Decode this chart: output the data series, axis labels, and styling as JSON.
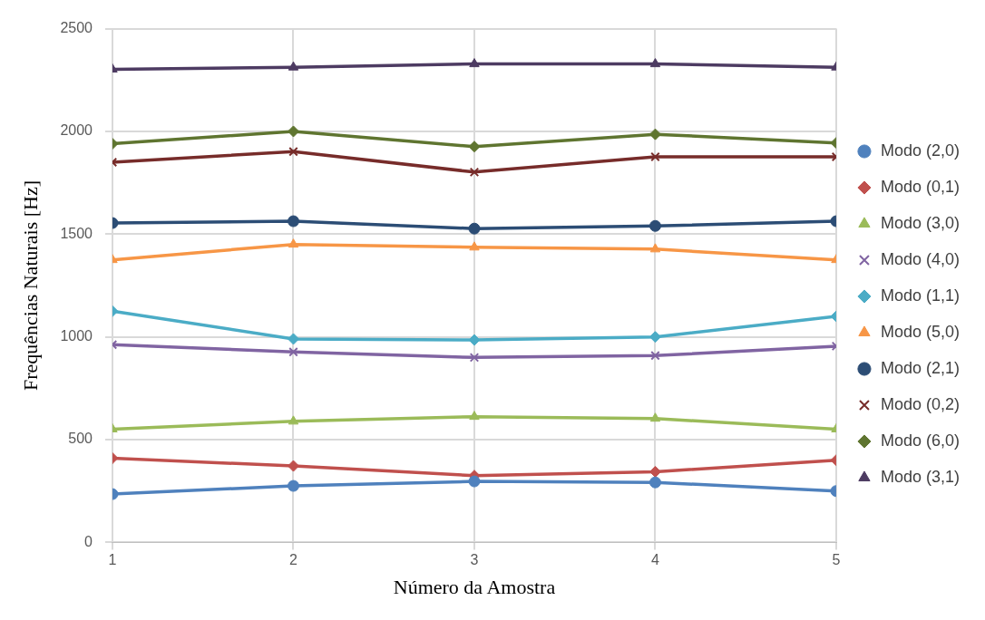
{
  "chart_data": {
    "type": "line",
    "xlabel": "Número da Amostra",
    "ylabel": "Frequências Naturais [Hz]",
    "x": [
      1,
      2,
      3,
      4,
      5
    ],
    "xlim": [
      1,
      5
    ],
    "xticks": [
      1,
      2,
      3,
      4,
      5
    ],
    "ylim": [
      0,
      2500
    ],
    "yticks": [
      0,
      500,
      1000,
      1500,
      2000,
      2500
    ],
    "grid": true,
    "legend": "right",
    "series": [
      {
        "name": "Modo (2,0)",
        "color": "#4f81bd",
        "marker": "circle",
        "values": [
          235,
          275,
          297,
          292,
          250
        ]
      },
      {
        "name": "Modo (0,1)",
        "color": "#c0504d",
        "marker": "diamond",
        "values": [
          410,
          372,
          325,
          344,
          400
        ]
      },
      {
        "name": "Modo (3,0)",
        "color": "#9bbb59",
        "marker": "triangle",
        "values": [
          551,
          589,
          612,
          603,
          551
        ]
      },
      {
        "name": "Modo (4,0)",
        "color": "#8064a2",
        "marker": "cross",
        "values": [
          962,
          927,
          900,
          909,
          955
        ]
      },
      {
        "name": "Modo (1,1)",
        "color": "#4bacc6",
        "marker": "diamond",
        "values": [
          1125,
          990,
          985,
          1000,
          1100
        ]
      },
      {
        "name": "Modo (5,0)",
        "color": "#f79646",
        "marker": "triangle",
        "values": [
          1375,
          1450,
          1436,
          1427,
          1375
        ]
      },
      {
        "name": "Modo (2,1)",
        "color": "#2c4d75",
        "marker": "circle",
        "values": [
          1554,
          1563,
          1527,
          1540,
          1563
        ]
      },
      {
        "name": "Modo (0,2)",
        "color": "#772c2a",
        "marker": "cross",
        "values": [
          1850,
          1902,
          1802,
          1876,
          1876
        ]
      },
      {
        "name": "Modo (6,0)",
        "color": "#5f7530",
        "marker": "diamond",
        "values": [
          1940,
          2000,
          1926,
          1986,
          1944
        ]
      },
      {
        "name": "Modo (3,1)",
        "color": "#4d3b62",
        "marker": "triangle",
        "values": [
          2302,
          2312,
          2328,
          2328,
          2312
        ]
      }
    ]
  }
}
